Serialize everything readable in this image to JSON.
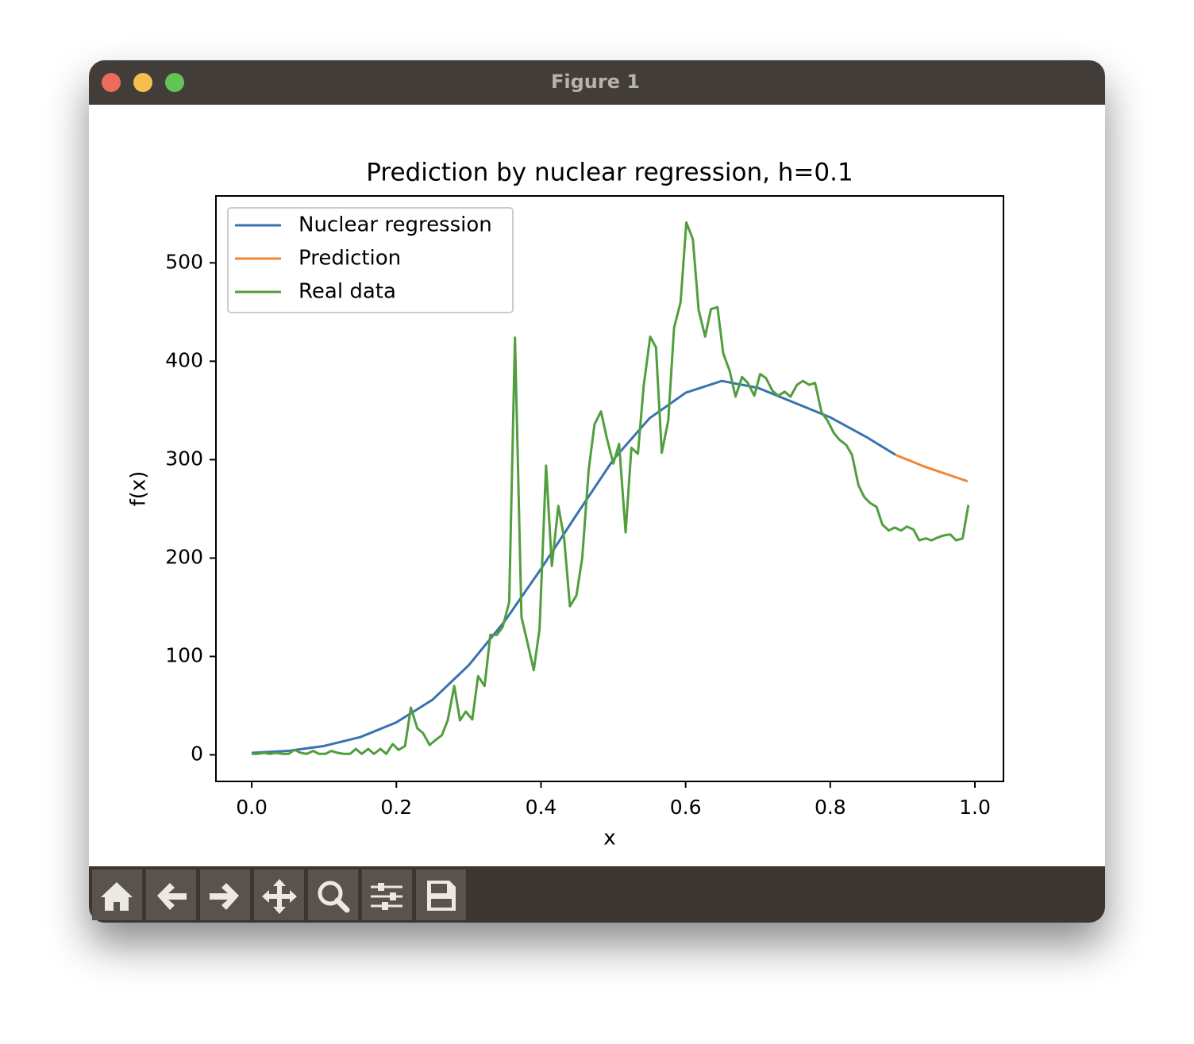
{
  "window": {
    "title": "Figure 1"
  },
  "chart_data": {
    "type": "line",
    "title": "Prediction by nuclear regression, h=0.1",
    "x_label": "x",
    "y_label": "f(x)",
    "xlim": [
      -0.0495,
      1.0395
    ],
    "ylim": [
      -27,
      568
    ],
    "xticks": [
      {
        "value": 0,
        "label": "0.0"
      },
      0.2,
      0.4,
      0.6,
      0.8,
      {
        "value": 1,
        "label": "1.0"
      }
    ],
    "yticks": [
      0,
      100,
      200,
      300,
      400,
      500
    ],
    "legend": "upper left",
    "series": [
      {
        "name": "Nuclear regression",
        "color": "#3a72b0",
        "x": [
          0,
          0.05,
          0.1,
          0.15,
          0.2,
          0.25,
          0.3,
          0.35,
          0.4,
          0.45,
          0.5,
          0.55,
          0.6,
          0.65,
          0.7,
          0.75,
          0.8,
          0.85,
          0.89
        ],
        "values": [
          2,
          4,
          9,
          18,
          33,
          56,
          91,
          136,
          189,
          245,
          300,
          342,
          368,
          380,
          373,
          358,
          343,
          323,
          305
        ]
      },
      {
        "name": "Prediction",
        "color": "#ef8636",
        "x": [
          0.89,
          0.91,
          0.93,
          0.95,
          0.97,
          0.99
        ],
        "values": [
          305,
          299,
          293,
          288,
          283,
          278
        ]
      },
      {
        "name": "Real data",
        "color": "#519e3e",
        "x": [
          0,
          0.008,
          0.017,
          0.025,
          0.034,
          0.042,
          0.051,
          0.059,
          0.068,
          0.076,
          0.085,
          0.093,
          0.102,
          0.11,
          0.119,
          0.127,
          0.136,
          0.144,
          0.152,
          0.161,
          0.169,
          0.178,
          0.186,
          0.195,
          0.203,
          0.212,
          0.22,
          0.229,
          0.237,
          0.246,
          0.254,
          0.263,
          0.271,
          0.28,
          0.288,
          0.296,
          0.305,
          0.313,
          0.322,
          0.33,
          0.339,
          0.347,
          0.356,
          0.364,
          0.373,
          0.381,
          0.39,
          0.398,
          0.407,
          0.415,
          0.424,
          0.432,
          0.44,
          0.449,
          0.457,
          0.466,
          0.474,
          0.483,
          0.491,
          0.5,
          0.508,
          0.517,
          0.525,
          0.534,
          0.542,
          0.551,
          0.559,
          0.567,
          0.576,
          0.584,
          0.593,
          0.601,
          0.61,
          0.618,
          0.627,
          0.635,
          0.644,
          0.652,
          0.661,
          0.669,
          0.678,
          0.686,
          0.695,
          0.703,
          0.711,
          0.72,
          0.728,
          0.737,
          0.745,
          0.754,
          0.762,
          0.771,
          0.779,
          0.788,
          0.796,
          0.805,
          0.813,
          0.822,
          0.83,
          0.839,
          0.847,
          0.855,
          0.864,
          0.872,
          0.881,
          0.889,
          0.898,
          0.906,
          0.915,
          0.923,
          0.932,
          0.94,
          0.949,
          0.957,
          0.966,
          0.974,
          0.983,
          0.991
        ],
        "values": [
          1,
          1,
          2,
          1,
          2,
          1,
          1,
          5,
          2,
          1,
          4,
          1,
          1,
          4,
          2,
          1,
          1,
          6,
          1,
          6,
          1,
          6,
          1,
          11,
          5,
          9,
          48,
          27,
          22,
          10,
          15,
          20,
          35,
          70,
          35,
          44,
          36,
          80,
          70,
          122,
          122,
          130,
          155,
          424,
          140,
          115,
          86,
          128,
          294,
          192,
          253,
          220,
          151,
          162,
          200,
          290,
          336,
          349,
          322,
          296,
          316,
          226,
          312,
          306,
          375,
          425,
          414,
          307,
          340,
          434,
          460,
          541,
          524,
          452,
          425,
          453,
          455,
          408,
          390,
          364,
          384,
          378,
          365,
          387,
          383,
          370,
          365,
          369,
          364,
          376,
          380,
          376,
          378,
          348,
          340,
          327,
          320,
          315,
          305,
          274,
          262,
          256,
          252,
          234,
          228,
          231,
          228,
          232,
          229,
          218,
          220,
          218,
          221,
          223,
          224,
          218,
          220,
          254
        ]
      }
    ]
  }
}
